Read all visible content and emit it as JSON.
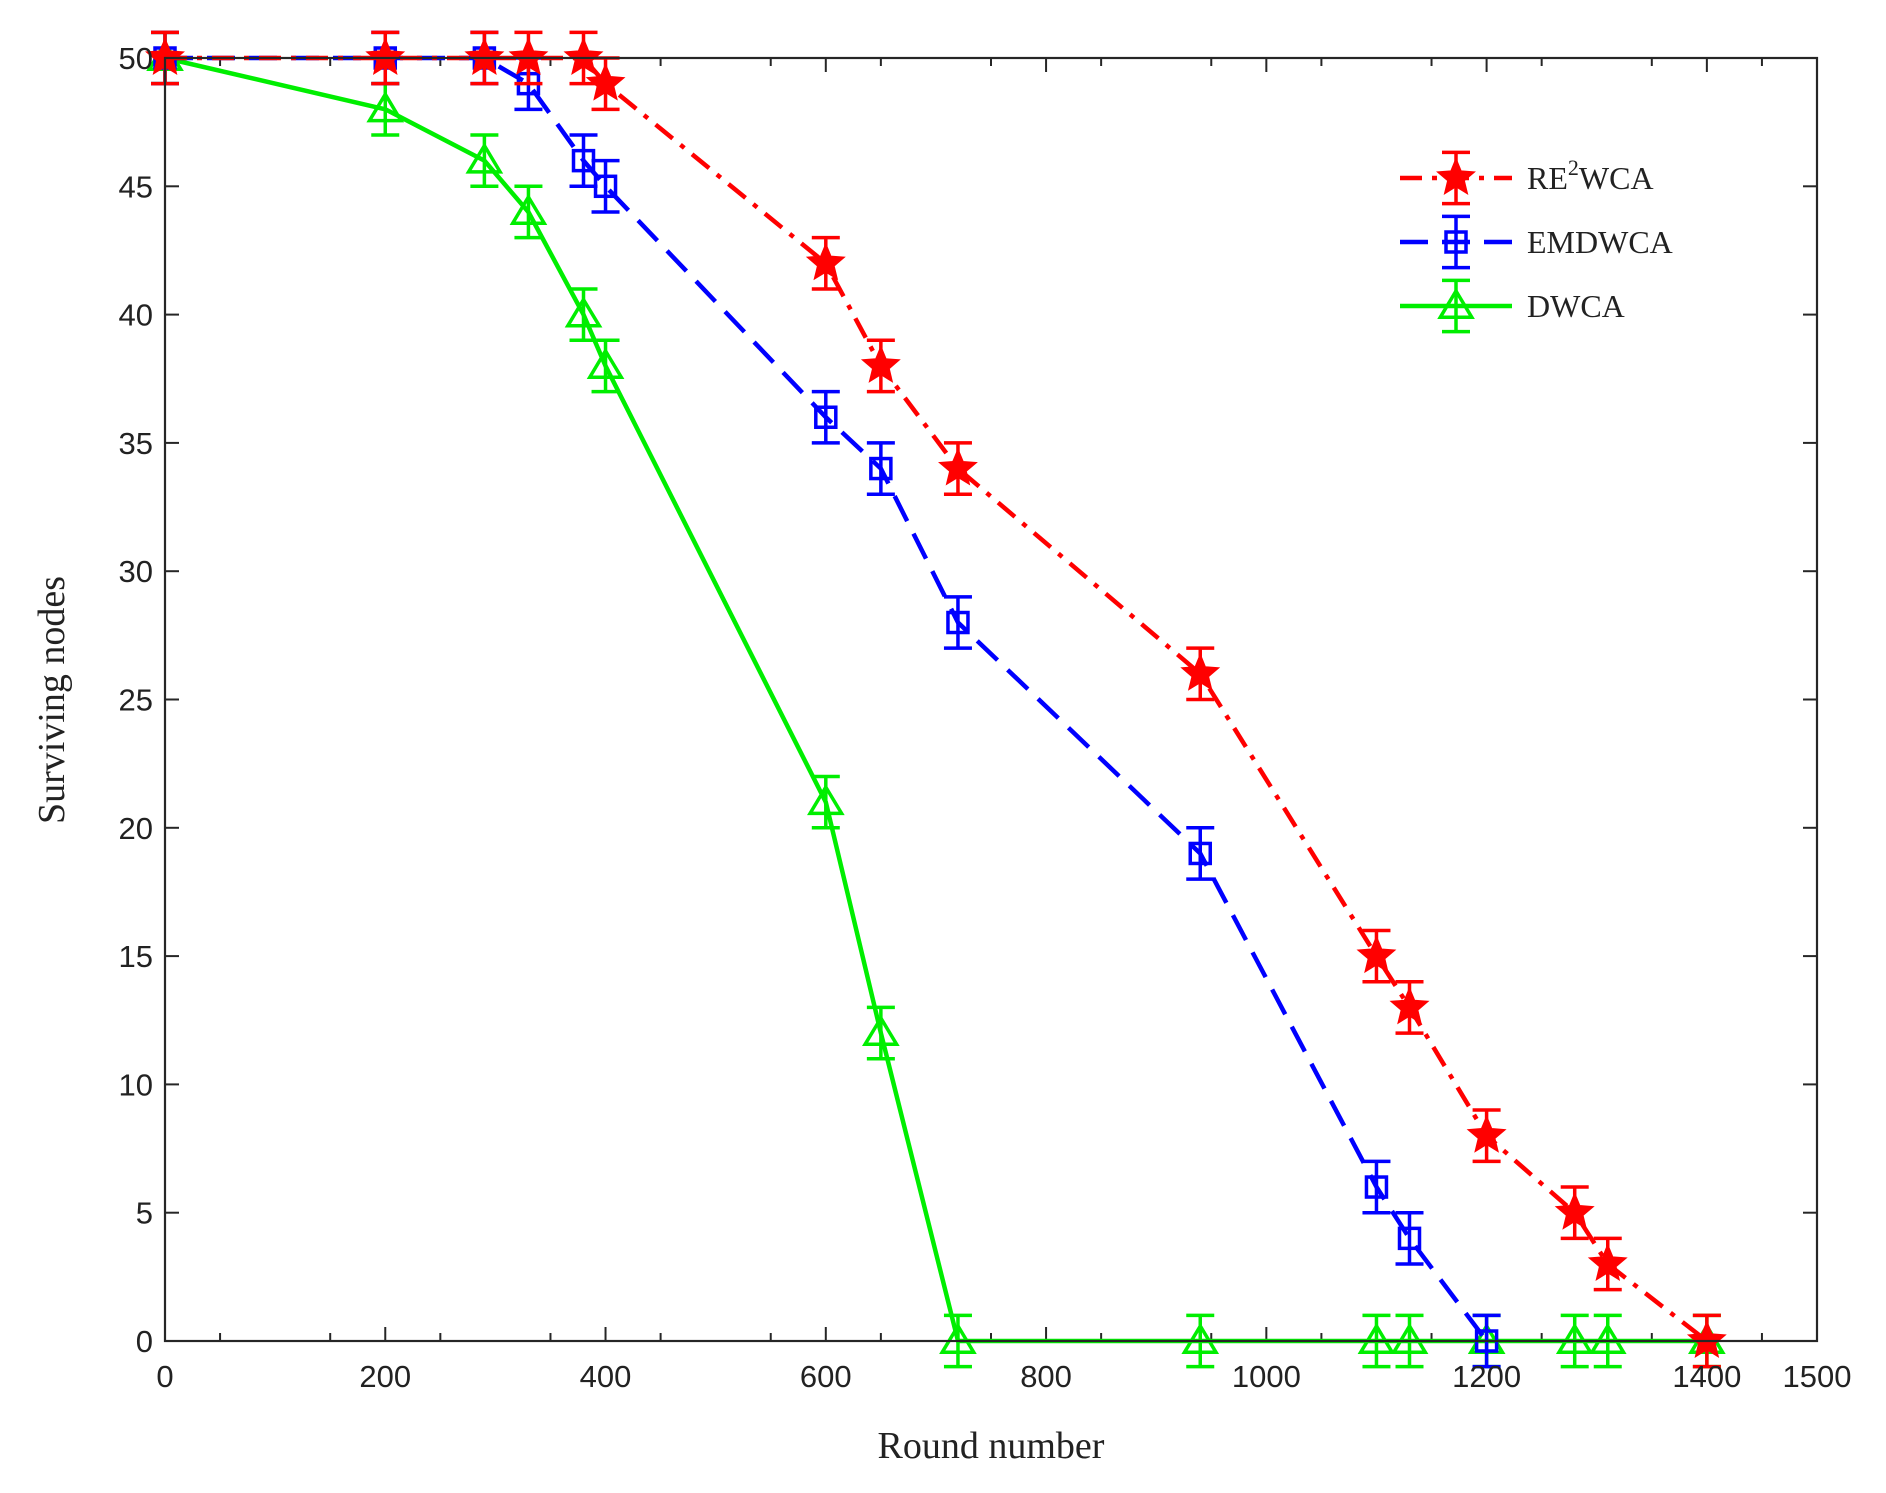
{
  "chart_data": {
    "type": "line",
    "title": "",
    "xlabel": "Round number",
    "ylabel": "Surviving nodes",
    "xlim": [
      0,
      1500
    ],
    "ylim": [
      0,
      50
    ],
    "xticks": [
      0,
      200,
      400,
      600,
      800,
      1000,
      1200,
      1400,
      1500
    ],
    "yticks": [
      0,
      5,
      10,
      15,
      20,
      25,
      30,
      35,
      40,
      45,
      50
    ],
    "error_bar": 1,
    "legend_position": "top-right",
    "series": [
      {
        "name": "RE2WCA",
        "legend_main": "RE",
        "legend_sup": "2",
        "legend_rest": "WCA",
        "color": "#ff0000",
        "line_style": "dash-dot",
        "marker": "star",
        "x": [
          0,
          200,
          290,
          330,
          380,
          400,
          600,
          650,
          720,
          940,
          1100,
          1130,
          1200,
          1280,
          1310,
          1400
        ],
        "y": [
          50,
          50,
          50,
          50,
          50,
          49,
          42,
          38,
          34,
          26,
          15,
          13,
          8,
          5,
          3,
          0
        ]
      },
      {
        "name": "EMDWCA",
        "legend_main": "EMDWCA",
        "legend_sup": "",
        "legend_rest": "",
        "color": "#0000ff",
        "line_style": "dashed",
        "marker": "square",
        "x": [
          0,
          200,
          290,
          330,
          380,
          400,
          600,
          650,
          720,
          940,
          1100,
          1130,
          1200
        ],
        "y": [
          50,
          50,
          50,
          49,
          46,
          45,
          36,
          34,
          28,
          19,
          6,
          4,
          0
        ]
      },
      {
        "name": "DWCA",
        "legend_main": "DWCA",
        "legend_sup": "",
        "legend_rest": "",
        "color": "#00ee00",
        "line_style": "solid",
        "marker": "triangle",
        "x": [
          0,
          200,
          290,
          330,
          380,
          400,
          600,
          650,
          720,
          940,
          1100,
          1130,
          1200,
          1280,
          1310,
          1400
        ],
        "y": [
          50,
          48,
          46,
          44,
          40,
          38,
          21,
          12,
          0,
          0,
          0,
          0,
          0,
          0,
          0,
          0
        ]
      }
    ]
  }
}
